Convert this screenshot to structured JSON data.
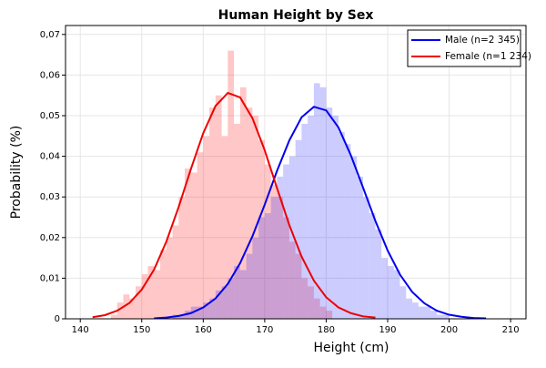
{
  "chart_data": {
    "type": "histogram",
    "title": "Human Height by Sex",
    "xlabel": "Height (cm)",
    "ylabel": "Probability (%)",
    "xlim": [
      137.6,
      212.5
    ],
    "ylim": [
      0,
      0.0722
    ],
    "xticks": [
      140,
      150,
      160,
      170,
      180,
      190,
      200,
      210
    ],
    "yticks": [
      0,
      {
        "value": 0.01,
        "label": "0,01"
      },
      {
        "value": 0.02,
        "label": "0,02"
      },
      {
        "value": 0.03,
        "label": "0,03"
      },
      {
        "value": 0.04,
        "label": "0,04"
      },
      {
        "value": 0.05,
        "label": "0,05"
      },
      {
        "value": 0.06,
        "label": "0,06"
      },
      {
        "value": 0.07,
        "label": "0,07"
      }
    ],
    "grid": true,
    "legend": "upper right",
    "histograms": [
      {
        "color": "#ff0000",
        "opacity": 0.22,
        "bins": [
          145,
          146,
          147,
          148,
          149,
          150,
          151,
          152,
          153,
          154,
          155,
          156,
          157,
          158,
          159,
          160,
          161,
          162,
          163,
          164,
          165,
          166,
          167,
          168,
          169,
          170,
          171,
          172,
          173,
          174,
          175,
          176,
          177,
          178,
          179,
          180,
          181
        ],
        "values": [
          0.001,
          0.004,
          0.006,
          0.005,
          0.008,
          0.011,
          0.013,
          0.012,
          0.017,
          0.02,
          0.023,
          0.03,
          0.037,
          0.036,
          0.041,
          0.045,
          0.052,
          0.055,
          0.045,
          0.066,
          0.048,
          0.057,
          0.052,
          0.05,
          0.044,
          0.038,
          0.033,
          0.03,
          0.025,
          0.019,
          0.016,
          0.01,
          0.008,
          0.005,
          0.003,
          0.002
        ]
      },
      {
        "color": "#0000ff",
        "opacity": 0.2,
        "bins": [
          155,
          156,
          157,
          158,
          159,
          160,
          161,
          162,
          163,
          164,
          165,
          166,
          167,
          168,
          169,
          170,
          171,
          172,
          173,
          174,
          175,
          176,
          177,
          178,
          179,
          180,
          181,
          182,
          183,
          184,
          185,
          186,
          187,
          188,
          189,
          190,
          191,
          192,
          193,
          194,
          195,
          196,
          197,
          198,
          199,
          200
        ],
        "values": [
          0.001,
          0.001,
          0.002,
          0.003,
          0.003,
          0.004,
          0.005,
          0.007,
          0.008,
          0.01,
          0.013,
          0.012,
          0.016,
          0.02,
          0.025,
          0.026,
          0.03,
          0.035,
          0.038,
          0.04,
          0.044,
          0.048,
          0.05,
          0.058,
          0.057,
          0.052,
          0.05,
          0.046,
          0.043,
          0.04,
          0.035,
          0.03,
          0.026,
          0.022,
          0.015,
          0.013,
          0.012,
          0.008,
          0.005,
          0.004,
          0.003,
          0.003,
          0.002,
          0.001,
          0.001
        ]
      }
    ],
    "series": [
      {
        "name": "Male (n=2 345)",
        "color": "#0000ee",
        "x": [
          152,
          154,
          156,
          158,
          160,
          162,
          164,
          166,
          168,
          170,
          172,
          174,
          176,
          178,
          180,
          182,
          184,
          186,
          188,
          190,
          192,
          194,
          196,
          198,
          200,
          202,
          204,
          206
        ],
        "values": [
          0.0001,
          0.0003,
          0.0007,
          0.0014,
          0.0028,
          0.005,
          0.0086,
          0.0137,
          0.0203,
          0.0281,
          0.0364,
          0.0439,
          0.0496,
          0.0522,
          0.0513,
          0.0471,
          0.0403,
          0.0323,
          0.0241,
          0.0168,
          0.0109,
          0.0066,
          0.0038,
          0.002,
          0.001,
          0.0005,
          0.0002,
          0.0001
        ]
      },
      {
        "name": "Female (n=1 234)",
        "color": "#ee0000",
        "x": [
          142,
          144,
          146,
          148,
          150,
          152,
          154,
          156,
          158,
          160,
          162,
          164,
          166,
          168,
          170,
          172,
          174,
          176,
          178,
          180,
          182,
          184,
          186,
          188
        ],
        "values": [
          0.0004,
          0.0009,
          0.002,
          0.0039,
          0.0072,
          0.0121,
          0.019,
          0.0275,
          0.0369,
          0.0457,
          0.0524,
          0.0556,
          0.0545,
          0.0494,
          0.0415,
          0.0322,
          0.0231,
          0.0153,
          0.0094,
          0.0053,
          0.0028,
          0.0014,
          0.0006,
          0.0003
        ]
      }
    ]
  }
}
